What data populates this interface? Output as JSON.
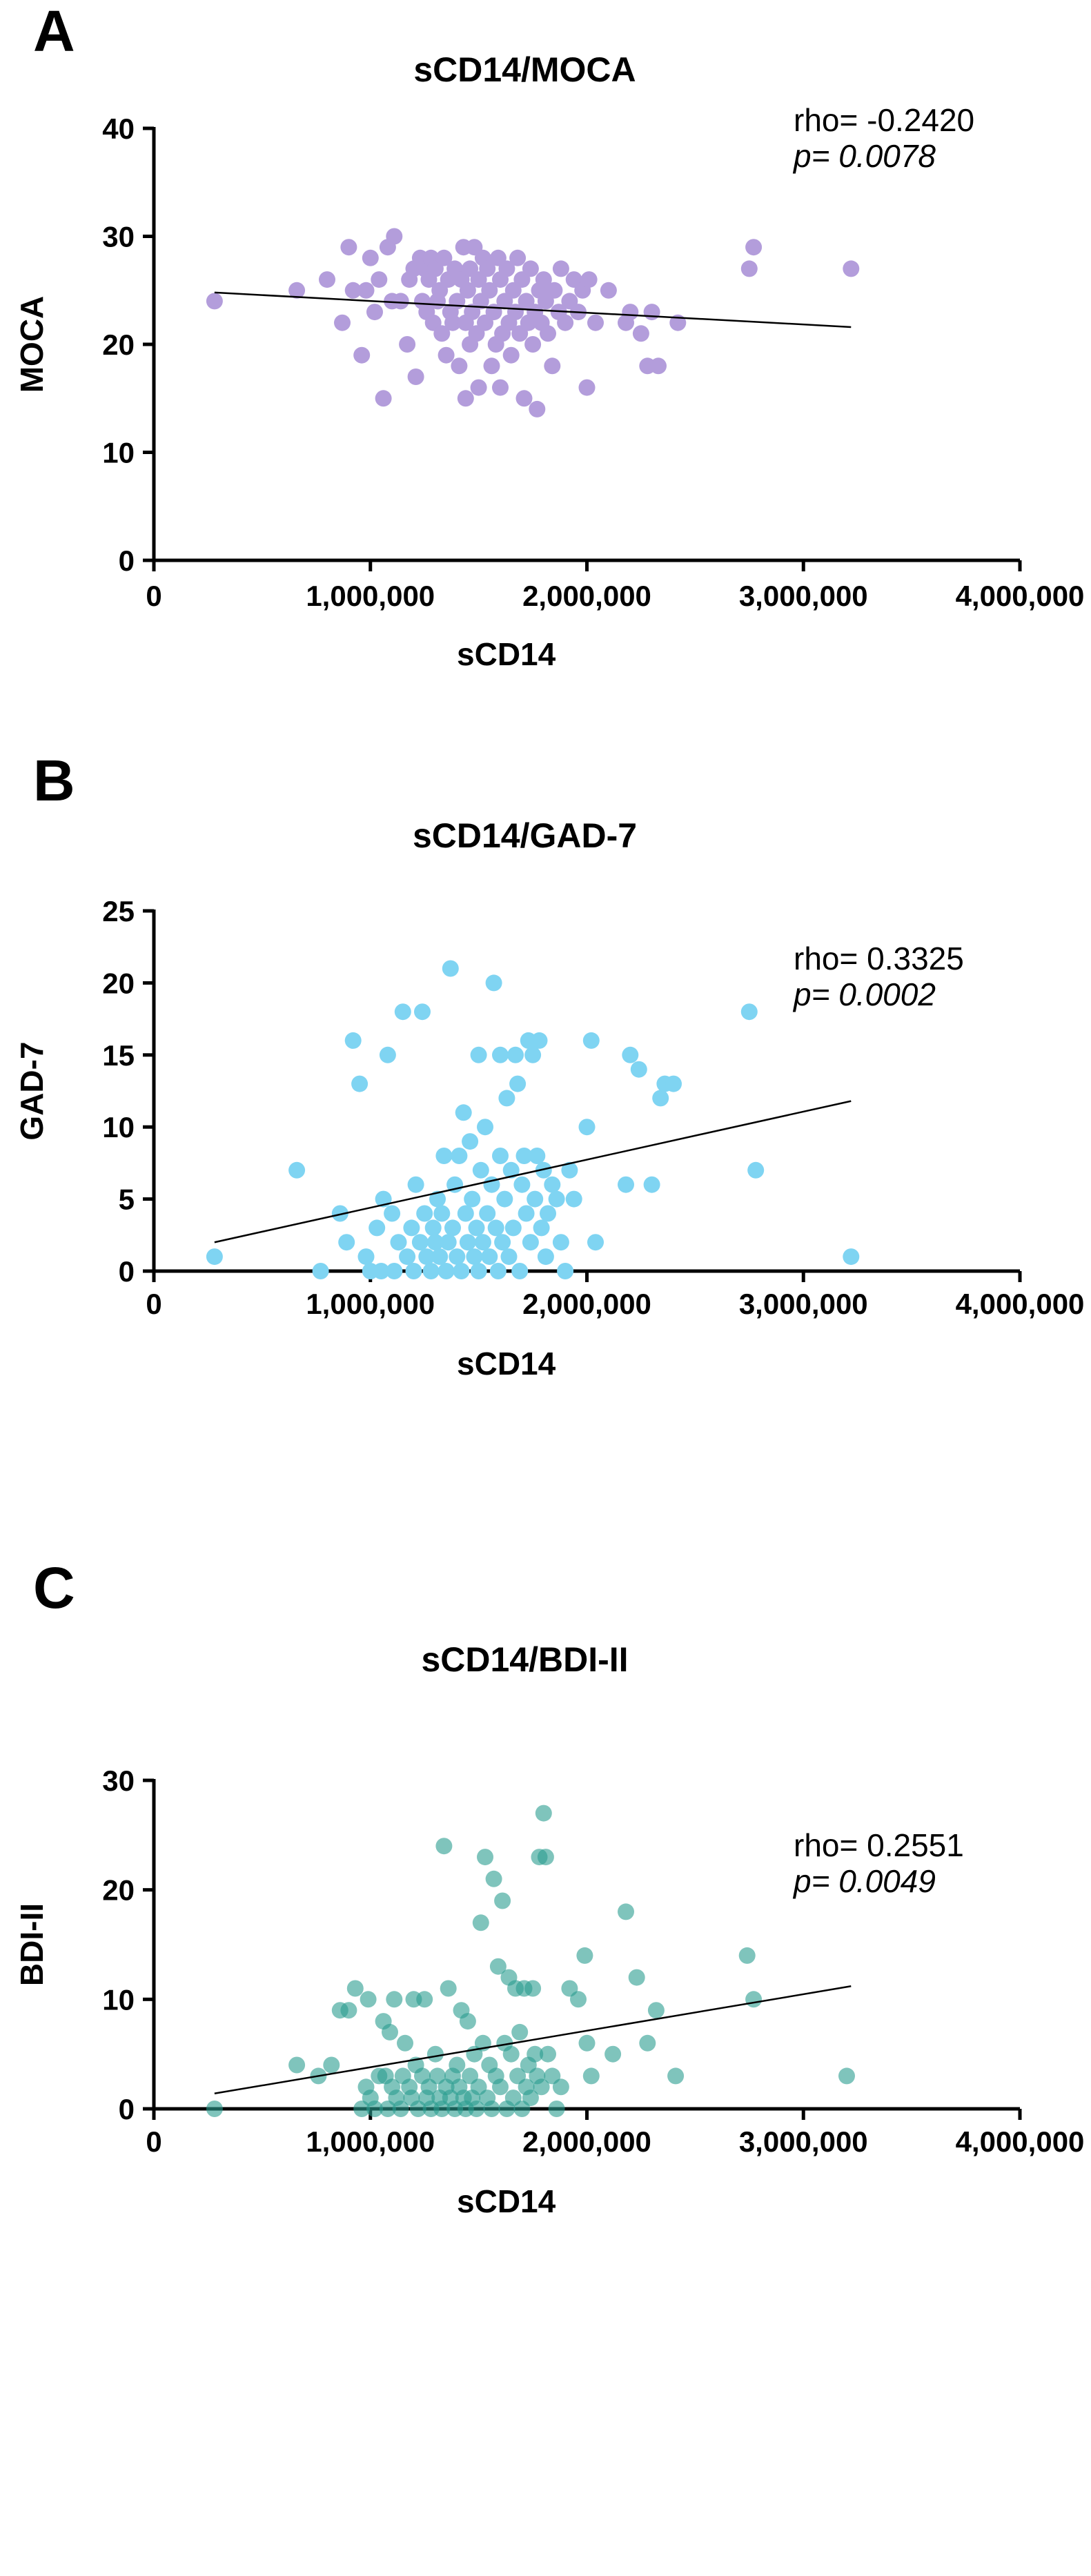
{
  "figure": {
    "panel_count": 3
  },
  "chart_data": [
    {
      "type": "scatter",
      "panel_letter": "A",
      "title": "sCD14/MOCA",
      "xlabel": "sCD14",
      "ylabel": "MOCA",
      "xlim": [
        0,
        4000000
      ],
      "ylim": [
        0,
        40
      ],
      "x_ticks": [
        0,
        1000000,
        2000000,
        3000000,
        4000000
      ],
      "x_tick_labels": [
        "0",
        "1,000,000",
        "2,000,000",
        "3,000,000",
        "4,000,000"
      ],
      "y_ticks": [
        0,
        10,
        20,
        30,
        40
      ],
      "y_tick_labels": [
        "0",
        "10",
        "20",
        "30",
        "40"
      ],
      "point_color": "#b39ddb",
      "point_opacity": 1,
      "annotation": {
        "rho": "rho= -0.2420",
        "p": "p= 0.0078"
      },
      "fit_line": {
        "x": [
          280000,
          3220000
        ],
        "y": [
          24.8,
          21.6
        ]
      },
      "points": [
        [
          280000,
          24
        ],
        [
          660000,
          25
        ],
        [
          800000,
          26
        ],
        [
          870000,
          22
        ],
        [
          900000,
          29
        ],
        [
          920000,
          25
        ],
        [
          960000,
          19
        ],
        [
          980000,
          25
        ],
        [
          1000000,
          28
        ],
        [
          1020000,
          23
        ],
        [
          1040000,
          26
        ],
        [
          1060000,
          15
        ],
        [
          1080000,
          29
        ],
        [
          1100000,
          24
        ],
        [
          1110000,
          30
        ],
        [
          1140000,
          24
        ],
        [
          1170000,
          20
        ],
        [
          1180000,
          26
        ],
        [
          1200000,
          27
        ],
        [
          1210000,
          17
        ],
        [
          1230000,
          28
        ],
        [
          1240000,
          24
        ],
        [
          1250000,
          27
        ],
        [
          1260000,
          23
        ],
        [
          1270000,
          26
        ],
        [
          1280000,
          28
        ],
        [
          1290000,
          22
        ],
        [
          1300000,
          27
        ],
        [
          1310000,
          24
        ],
        [
          1320000,
          25
        ],
        [
          1330000,
          21
        ],
        [
          1340000,
          28
        ],
        [
          1350000,
          19
        ],
        [
          1360000,
          26
        ],
        [
          1370000,
          23
        ],
        [
          1380000,
          22
        ],
        [
          1390000,
          27
        ],
        [
          1400000,
          24
        ],
        [
          1410000,
          18
        ],
        [
          1420000,
          26
        ],
        [
          1430000,
          29
        ],
        [
          1440000,
          22
        ],
        [
          1440000,
          15
        ],
        [
          1450000,
          25
        ],
        [
          1460000,
          27
        ],
        [
          1460000,
          20
        ],
        [
          1470000,
          23
        ],
        [
          1480000,
          29
        ],
        [
          1490000,
          21
        ],
        [
          1500000,
          26
        ],
        [
          1500000,
          16
        ],
        [
          1510000,
          24
        ],
        [
          1520000,
          28
        ],
        [
          1530000,
          22
        ],
        [
          1540000,
          27
        ],
        [
          1550000,
          25
        ],
        [
          1560000,
          18
        ],
        [
          1570000,
          23
        ],
        [
          1580000,
          20
        ],
        [
          1590000,
          28
        ],
        [
          1600000,
          26
        ],
        [
          1600000,
          16
        ],
        [
          1610000,
          21
        ],
        [
          1620000,
          24
        ],
        [
          1630000,
          27
        ],
        [
          1640000,
          22
        ],
        [
          1650000,
          19
        ],
        [
          1660000,
          25
        ],
        [
          1670000,
          23
        ],
        [
          1680000,
          28
        ],
        [
          1690000,
          21
        ],
        [
          1700000,
          26
        ],
        [
          1710000,
          15
        ],
        [
          1720000,
          24
        ],
        [
          1730000,
          22
        ],
        [
          1740000,
          27
        ],
        [
          1750000,
          20
        ],
        [
          1760000,
          23
        ],
        [
          1770000,
          14
        ],
        [
          1780000,
          25
        ],
        [
          1790000,
          22
        ],
        [
          1800000,
          26
        ],
        [
          1810000,
          24
        ],
        [
          1820000,
          21
        ],
        [
          1840000,
          18
        ],
        [
          1850000,
          25
        ],
        [
          1870000,
          23
        ],
        [
          1880000,
          27
        ],
        [
          1900000,
          22
        ],
        [
          1920000,
          24
        ],
        [
          1940000,
          26
        ],
        [
          1960000,
          23
        ],
        [
          1980000,
          25
        ],
        [
          2000000,
          16
        ],
        [
          2010000,
          26
        ],
        [
          2040000,
          22
        ],
        [
          2100000,
          25
        ],
        [
          2180000,
          22
        ],
        [
          2200000,
          23
        ],
        [
          2250000,
          21
        ],
        [
          2280000,
          18
        ],
        [
          2300000,
          23
        ],
        [
          2330000,
          18
        ],
        [
          2420000,
          22
        ],
        [
          2750000,
          27
        ],
        [
          2770000,
          29
        ],
        [
          3220000,
          27
        ]
      ]
    },
    {
      "type": "scatter",
      "panel_letter": "B",
      "title": "sCD14/GAD-7",
      "xlabel": "sCD14",
      "ylabel": "GAD-7",
      "xlim": [
        0,
        4000000
      ],
      "ylim": [
        0,
        25
      ],
      "x_ticks": [
        0,
        1000000,
        2000000,
        3000000,
        4000000
      ],
      "x_tick_labels": [
        "0",
        "1,000,000",
        "2,000,000",
        "3,000,000",
        "4,000,000"
      ],
      "y_ticks": [
        0,
        5,
        10,
        15,
        20,
        25
      ],
      "y_tick_labels": [
        "0",
        "5",
        "10",
        "15",
        "20",
        "25"
      ],
      "point_color": "#7fd4f2",
      "point_opacity": 1,
      "annotation": {
        "rho": "rho= 0.3325",
        "p": "p= 0.0002"
      },
      "fit_line": {
        "x": [
          280000,
          3220000
        ],
        "y": [
          2.0,
          11.8
        ]
      },
      "points": [
        [
          280000,
          1
        ],
        [
          660000,
          7
        ],
        [
          770000,
          0
        ],
        [
          860000,
          4
        ],
        [
          890000,
          2
        ],
        [
          920000,
          16
        ],
        [
          950000,
          13
        ],
        [
          980000,
          1
        ],
        [
          1000000,
          0
        ],
        [
          1030000,
          3
        ],
        [
          1050000,
          0
        ],
        [
          1060000,
          5
        ],
        [
          1080000,
          15
        ],
        [
          1100000,
          4
        ],
        [
          1110000,
          0
        ],
        [
          1130000,
          2
        ],
        [
          1150000,
          18
        ],
        [
          1170000,
          1
        ],
        [
          1190000,
          3
        ],
        [
          1200000,
          0
        ],
        [
          1210000,
          6
        ],
        [
          1230000,
          2
        ],
        [
          1240000,
          18
        ],
        [
          1250000,
          4
        ],
        [
          1260000,
          1
        ],
        [
          1280000,
          0
        ],
        [
          1290000,
          3
        ],
        [
          1300000,
          2
        ],
        [
          1310000,
          5
        ],
        [
          1320000,
          1
        ],
        [
          1330000,
          4
        ],
        [
          1340000,
          8
        ],
        [
          1350000,
          0
        ],
        [
          1360000,
          2
        ],
        [
          1370000,
          21
        ],
        [
          1380000,
          3
        ],
        [
          1390000,
          6
        ],
        [
          1400000,
          1
        ],
        [
          1410000,
          8
        ],
        [
          1420000,
          0
        ],
        [
          1430000,
          11
        ],
        [
          1440000,
          4
        ],
        [
          1450000,
          2
        ],
        [
          1460000,
          9
        ],
        [
          1470000,
          5
        ],
        [
          1480000,
          1
        ],
        [
          1490000,
          3
        ],
        [
          1500000,
          0
        ],
        [
          1500000,
          15
        ],
        [
          1510000,
          7
        ],
        [
          1520000,
          2
        ],
        [
          1530000,
          10
        ],
        [
          1540000,
          4
        ],
        [
          1550000,
          1
        ],
        [
          1560000,
          6
        ],
        [
          1570000,
          20
        ],
        [
          1580000,
          3
        ],
        [
          1590000,
          0
        ],
        [
          1600000,
          8
        ],
        [
          1600000,
          15
        ],
        [
          1610000,
          2
        ],
        [
          1620000,
          5
        ],
        [
          1630000,
          12
        ],
        [
          1640000,
          1
        ],
        [
          1650000,
          7
        ],
        [
          1660000,
          3
        ],
        [
          1670000,
          15
        ],
        [
          1680000,
          13
        ],
        [
          1690000,
          0
        ],
        [
          1700000,
          6
        ],
        [
          1710000,
          8
        ],
        [
          1720000,
          4
        ],
        [
          1730000,
          16
        ],
        [
          1740000,
          2
        ],
        [
          1750000,
          15
        ],
        [
          1760000,
          5
        ],
        [
          1770000,
          8
        ],
        [
          1780000,
          16
        ],
        [
          1790000,
          3
        ],
        [
          1800000,
          7
        ],
        [
          1810000,
          1
        ],
        [
          1820000,
          4
        ],
        [
          1840000,
          6
        ],
        [
          1860000,
          5
        ],
        [
          1880000,
          2
        ],
        [
          1900000,
          0
        ],
        [
          1920000,
          7
        ],
        [
          1940000,
          5
        ],
        [
          2000000,
          10
        ],
        [
          2020000,
          16
        ],
        [
          2040000,
          2
        ],
        [
          2180000,
          6
        ],
        [
          2200000,
          15
        ],
        [
          2240000,
          14
        ],
        [
          2300000,
          6
        ],
        [
          2340000,
          12
        ],
        [
          2360000,
          13
        ],
        [
          2400000,
          13
        ],
        [
          2750000,
          18
        ],
        [
          2780000,
          7
        ],
        [
          3220000,
          1
        ]
      ]
    },
    {
      "type": "scatter",
      "panel_letter": "C",
      "title": "sCD14/BDI-II",
      "xlabel": "sCD14",
      "ylabel": "BDI-II",
      "xlim": [
        0,
        4000000
      ],
      "ylim": [
        0,
        30
      ],
      "x_ticks": [
        0,
        1000000,
        2000000,
        3000000,
        4000000
      ],
      "x_tick_labels": [
        "0",
        "1,000,000",
        "2,000,000",
        "3,000,000",
        "4,000,000"
      ],
      "y_ticks": [
        0,
        10,
        20,
        30
      ],
      "y_tick_labels": [
        "0",
        "10",
        "20",
        "30"
      ],
      "point_color": "#2a9d8f",
      "point_opacity": 0.6,
      "annotation": {
        "rho": "rho= 0.2551",
        "p": "p= 0.0049"
      },
      "fit_line": {
        "x": [
          280000,
          3220000
        ],
        "y": [
          1.4,
          11.2
        ]
      },
      "points": [
        [
          280000,
          0
        ],
        [
          660000,
          4
        ],
        [
          760000,
          3
        ],
        [
          820000,
          4
        ],
        [
          860000,
          9
        ],
        [
          900000,
          9
        ],
        [
          930000,
          11
        ],
        [
          960000,
          0
        ],
        [
          980000,
          2
        ],
        [
          990000,
          10
        ],
        [
          1000000,
          1
        ],
        [
          1020000,
          0
        ],
        [
          1040000,
          3
        ],
        [
          1060000,
          8
        ],
        [
          1070000,
          3
        ],
        [
          1080000,
          0
        ],
        [
          1090000,
          7
        ],
        [
          1100000,
          2
        ],
        [
          1110000,
          10
        ],
        [
          1120000,
          1
        ],
        [
          1140000,
          0
        ],
        [
          1150000,
          3
        ],
        [
          1160000,
          6
        ],
        [
          1180000,
          2
        ],
        [
          1190000,
          1
        ],
        [
          1200000,
          10
        ],
        [
          1210000,
          4
        ],
        [
          1220000,
          0
        ],
        [
          1240000,
          3
        ],
        [
          1250000,
          10
        ],
        [
          1260000,
          1
        ],
        [
          1270000,
          2
        ],
        [
          1280000,
          0
        ],
        [
          1300000,
          5
        ],
        [
          1310000,
          3
        ],
        [
          1320000,
          1
        ],
        [
          1330000,
          0
        ],
        [
          1340000,
          24
        ],
        [
          1350000,
          2
        ],
        [
          1360000,
          11
        ],
        [
          1370000,
          1
        ],
        [
          1380000,
          3
        ],
        [
          1390000,
          0
        ],
        [
          1400000,
          4
        ],
        [
          1410000,
          2
        ],
        [
          1420000,
          9
        ],
        [
          1430000,
          1
        ],
        [
          1440000,
          0
        ],
        [
          1450000,
          8
        ],
        [
          1460000,
          3
        ],
        [
          1470000,
          1
        ],
        [
          1480000,
          5
        ],
        [
          1490000,
          0
        ],
        [
          1500000,
          2
        ],
        [
          1510000,
          17
        ],
        [
          1520000,
          6
        ],
        [
          1530000,
          23
        ],
        [
          1540000,
          1
        ],
        [
          1550000,
          4
        ],
        [
          1560000,
          0
        ],
        [
          1570000,
          21
        ],
        [
          1580000,
          3
        ],
        [
          1590000,
          13
        ],
        [
          1600000,
          2
        ],
        [
          1610000,
          19
        ],
        [
          1620000,
          6
        ],
        [
          1630000,
          0
        ],
        [
          1640000,
          12
        ],
        [
          1650000,
          5
        ],
        [
          1660000,
          1
        ],
        [
          1670000,
          11
        ],
        [
          1680000,
          3
        ],
        [
          1690000,
          7
        ],
        [
          1700000,
          0
        ],
        [
          1710000,
          11
        ],
        [
          1720000,
          2
        ],
        [
          1730000,
          4
        ],
        [
          1740000,
          1
        ],
        [
          1750000,
          11
        ],
        [
          1760000,
          5
        ],
        [
          1770000,
          3
        ],
        [
          1780000,
          23
        ],
        [
          1790000,
          2
        ],
        [
          1800000,
          27
        ],
        [
          1810000,
          23
        ],
        [
          1820000,
          5
        ],
        [
          1840000,
          3
        ],
        [
          1860000,
          0
        ],
        [
          1880000,
          2
        ],
        [
          1920000,
          11
        ],
        [
          1960000,
          10
        ],
        [
          1990000,
          14
        ],
        [
          2000000,
          6
        ],
        [
          2020000,
          3
        ],
        [
          2120000,
          5
        ],
        [
          2180000,
          18
        ],
        [
          2230000,
          12
        ],
        [
          2280000,
          6
        ],
        [
          2320000,
          9
        ],
        [
          2410000,
          3
        ],
        [
          2740000,
          14
        ],
        [
          2770000,
          10
        ],
        [
          3200000,
          3
        ]
      ]
    }
  ]
}
